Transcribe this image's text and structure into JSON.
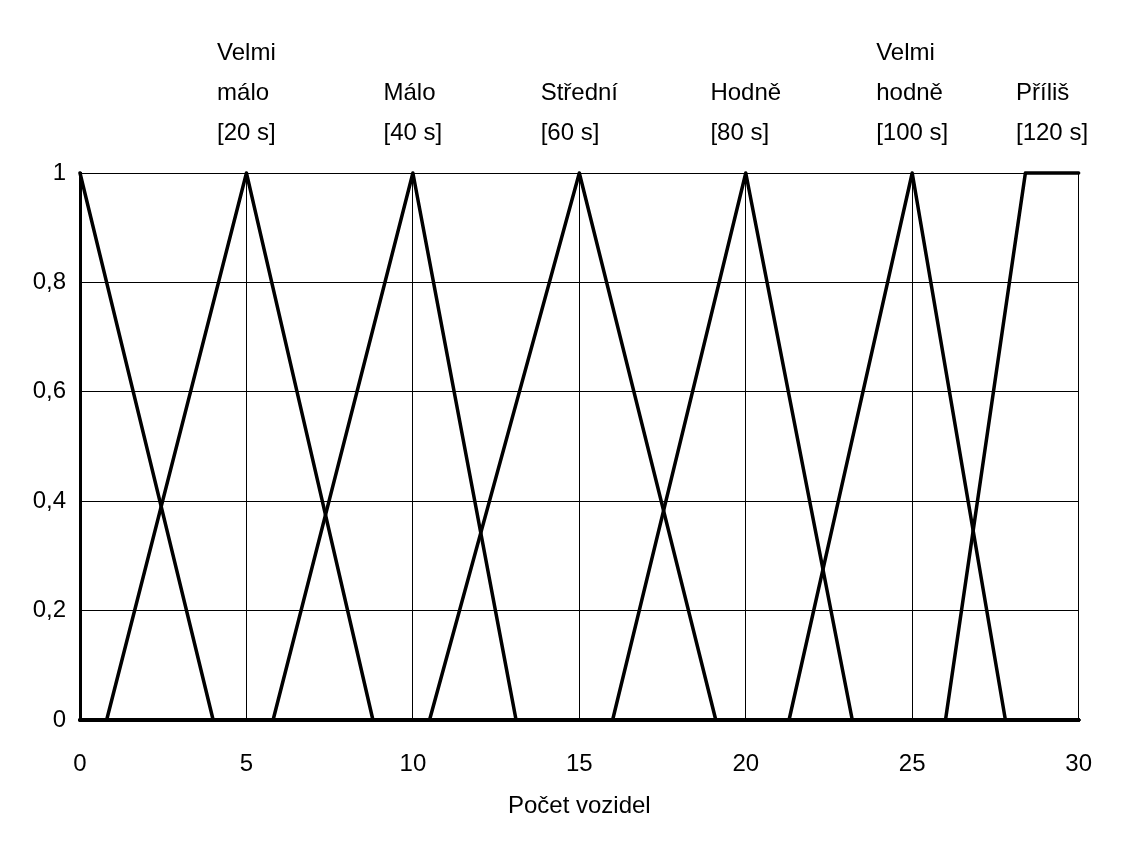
{
  "chart_data": {
    "type": "line",
    "xlabel": "Počet vozidel",
    "xlim": [
      0,
      30
    ],
    "xticks": [
      0,
      5,
      10,
      15,
      20,
      25,
      30
    ],
    "ylim": [
      0,
      1
    ],
    "yticks": [
      0,
      {
        "value": 0.2,
        "label": "0,2"
      },
      {
        "value": 0.4,
        "label": "0,4"
      },
      {
        "value": 0.6,
        "label": "0,6"
      },
      {
        "value": 0.8,
        "label": "0,8"
      },
      1
    ],
    "grid": true,
    "marker": "none",
    "line_style": "solid",
    "series": [
      {
        "color": "#000000",
        "x": [
          0,
          4,
          30
        ],
        "values": [
          1,
          0,
          0
        ]
      },
      {
        "name": "Velmi málo [20 s]",
        "color": "#000000",
        "x": [
          0,
          0.8,
          5,
          8.8,
          30
        ],
        "values": [
          0,
          0,
          1,
          0,
          0
        ]
      },
      {
        "name": "Málo [40 s]",
        "color": "#000000",
        "x": [
          0,
          5.8,
          10,
          13.1,
          30
        ],
        "values": [
          0,
          0,
          1,
          0,
          0
        ]
      },
      {
        "name": "Střední [60 s]",
        "color": "#000000",
        "x": [
          0,
          10.5,
          15,
          19.1,
          30
        ],
        "values": [
          0,
          0,
          1,
          0,
          0
        ]
      },
      {
        "name": "Hodně [80 s]",
        "color": "#000000",
        "x": [
          0,
          16,
          20,
          23.2,
          30
        ],
        "values": [
          0,
          0,
          1,
          0,
          0
        ]
      },
      {
        "name": "Velmi hodně [100 s]",
        "color": "#000000",
        "x": [
          0,
          21.3,
          25,
          27.8,
          30
        ],
        "values": [
          0,
          0,
          1,
          0,
          0
        ]
      },
      {
        "name": "Příliš [120 s]",
        "color": "#000000",
        "x": [
          0,
          26,
          28.4,
          30
        ],
        "values": [
          0,
          0,
          1,
          1
        ]
      }
    ]
  }
}
